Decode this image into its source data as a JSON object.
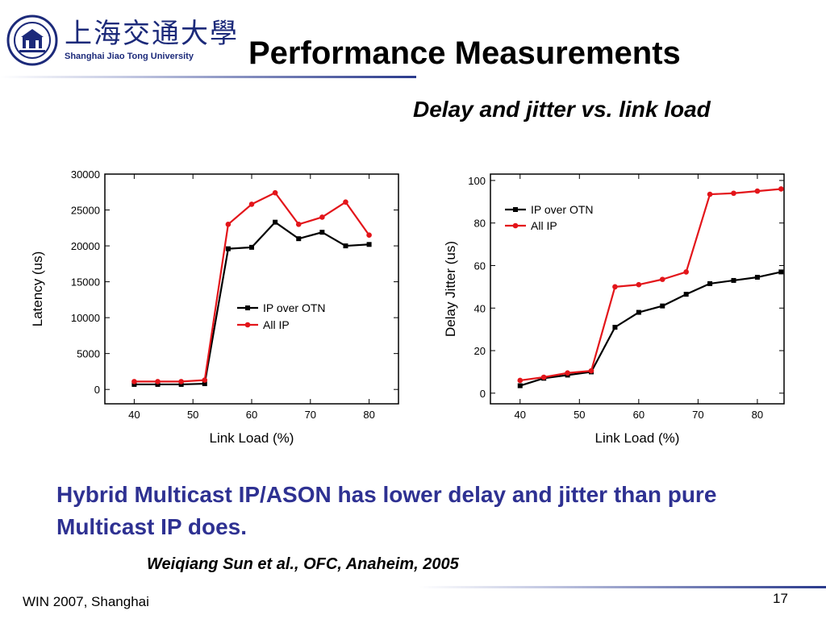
{
  "header": {
    "logo_cn": "上海交通大學",
    "logo_en": "Shanghai Jiao Tong University",
    "title": "Performance Measurements",
    "subtitle": "Delay and jitter vs. link load"
  },
  "colors": {
    "ip_over_otn": "#000000",
    "all_ip": "#e3151a",
    "conclusion_text": "#2e3192",
    "accent_rule": "#2a3a8c"
  },
  "chart_data": [
    {
      "type": "line",
      "title": "",
      "xlabel": "Link Load (%)",
      "ylabel": "Latency (us)",
      "xlim": [
        35,
        85
      ],
      "ylim": [
        -2000,
        30000
      ],
      "xticks": [
        40,
        50,
        60,
        70,
        80
      ],
      "yticks": [
        0,
        5000,
        10000,
        15000,
        20000,
        25000,
        30000
      ],
      "legend_position": "center-right",
      "grid": false,
      "x": [
        40,
        44,
        48,
        52,
        56,
        60,
        64,
        68,
        72,
        76,
        80
      ],
      "series": [
        {
          "name": "IP over OTN",
          "color": "#000000",
          "marker": "square",
          "values": [
            700,
            700,
            700,
            800,
            19600,
            19800,
            23300,
            21000,
            21900,
            20000,
            20200
          ]
        },
        {
          "name": "All IP",
          "color": "#e3151a",
          "marker": "circle",
          "values": [
            1100,
            1100,
            1100,
            1300,
            23000,
            25800,
            27400,
            23000,
            24000,
            26100,
            21500
          ]
        }
      ]
    },
    {
      "type": "line",
      "title": "",
      "xlabel": "Link Load (%)",
      "ylabel": "Delay Jitter (us)",
      "xlim": [
        35,
        84.5
      ],
      "ylim": [
        -5,
        103
      ],
      "xticks": [
        40,
        50,
        60,
        70,
        80
      ],
      "yticks": [
        0,
        20,
        40,
        60,
        80,
        100
      ],
      "legend_position": "top-left",
      "grid": false,
      "x": [
        40,
        44,
        48,
        52,
        56,
        60,
        64,
        68,
        72,
        76,
        80,
        84
      ],
      "series": [
        {
          "name": "IP over OTN",
          "color": "#000000",
          "marker": "square",
          "values": [
            3.5,
            7,
            8.5,
            10,
            31,
            38,
            41,
            46.5,
            51.5,
            53,
            54.5,
            57
          ]
        },
        {
          "name": "All IP",
          "color": "#e3151a",
          "marker": "circle",
          "values": [
            6,
            7.5,
            9.5,
            10.5,
            50,
            51,
            53.5,
            57,
            93.5,
            94,
            95,
            96
          ]
        }
      ]
    }
  ],
  "body": {
    "conclusion": "Hybrid Multicast IP/ASON has lower delay and jitter than pure Multicast IP does.",
    "citation": "Weiqiang Sun et al., OFC, Anaheim, 2005"
  },
  "footer": {
    "event": "WIN 2007, Shanghai",
    "page_number": "17"
  }
}
